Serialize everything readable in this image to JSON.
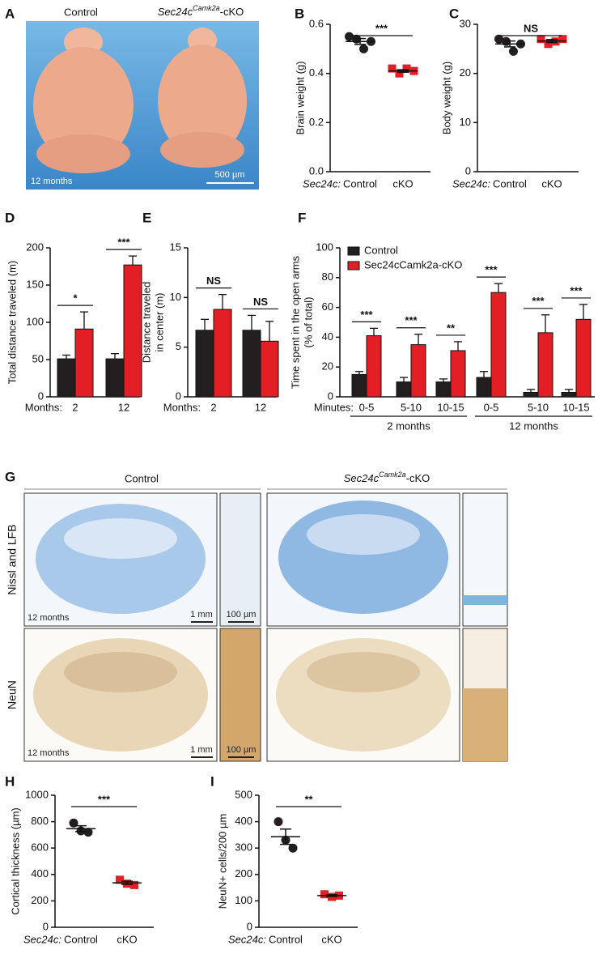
{
  "panel_a": {
    "letter": "A",
    "control": "Control",
    "cko": [
      "Sec24c",
      "Camk2a",
      "-cKO"
    ],
    "age": "12 months",
    "scale": "500 µm"
  },
  "panel_g": {
    "letter": "G",
    "control": "Control",
    "cko": [
      "Sec24c",
      "Camk2a",
      "-cKO"
    ],
    "rows": [
      "Nissl and LFB",
      "NeuN"
    ],
    "age": [
      "12 months",
      "12 months"
    ],
    "scale_large": [
      "1 mm",
      "1 mm"
    ],
    "scale_small": [
      "100 µm",
      "100 µm"
    ]
  },
  "chart_data": [
    {
      "panel": "B",
      "type": "dot",
      "ylabel": "Brain weight (g)",
      "x_prefix": "Sec24c:",
      "categories": [
        "Control",
        "cKO"
      ],
      "points": [
        [
          0.55,
          0.54,
          0.5,
          0.53
        ],
        [
          0.42,
          0.4,
          0.42,
          0.41
        ]
      ],
      "means": [
        0.53,
        0.41
      ],
      "sem": [
        0.012,
        0.005
      ],
      "colors": [
        "#231f20",
        "#e31e24"
      ],
      "markers": [
        "circle",
        "square"
      ],
      "ylim": [
        0,
        0.6
      ],
      "yticks": [
        {
          "value": 0,
          "label": "0.0"
        },
        0.2,
        0.4,
        0.6
      ],
      "significance": "***"
    },
    {
      "panel": "C",
      "type": "dot",
      "ylabel": "Body weight (g)",
      "x_prefix": "Sec24c:",
      "categories": [
        "Control",
        "cKO"
      ],
      "points": [
        [
          27,
          26.5,
          24.5,
          26
        ],
        [
          27,
          26,
          26.5,
          27
        ]
      ],
      "means": [
        26,
        26.6
      ],
      "sem": [
        0.6,
        0.3
      ],
      "colors": [
        "#231f20",
        "#e31e24"
      ],
      "markers": [
        "circle",
        "square"
      ],
      "ylim": [
        0,
        30
      ],
      "yticks": [
        0,
        10,
        20,
        30
      ],
      "significance": "NS"
    },
    {
      "panel": "D",
      "type": "bar",
      "ylabel": "Total distance traveled (m)",
      "xlabel": "Months:",
      "categories": [
        "2",
        "12"
      ],
      "series": [
        {
          "color": "#231f20",
          "values": [
            51,
            51
          ],
          "errors": [
            5,
            7
          ]
        },
        {
          "color": "#e31e24",
          "values": [
            91,
            177
          ],
          "errors": [
            23,
            12
          ]
        }
      ],
      "ylim": [
        0,
        200
      ],
      "yticks": [
        0,
        50,
        100,
        150,
        200
      ],
      "significance": [
        "*",
        "***"
      ]
    },
    {
      "panel": "E",
      "type": "bar",
      "ylabel": [
        "Distance traveled",
        "in center (m)"
      ],
      "xlabel": "Months:",
      "categories": [
        "2",
        "12"
      ],
      "series": [
        {
          "color": "#231f20",
          "values": [
            6.7,
            6.7
          ],
          "errors": [
            1.1,
            1.5
          ]
        },
        {
          "color": "#e31e24",
          "values": [
            8.8,
            5.6
          ],
          "errors": [
            1.5,
            2
          ]
        }
      ],
      "ylim": [
        0,
        15
      ],
      "yticks": [
        0,
        5,
        10,
        15
      ],
      "significance": [
        "NS",
        "NS"
      ]
    },
    {
      "panel": "F",
      "type": "bar",
      "ylabel": [
        "Time spent in the open arms",
        "(% of total)"
      ],
      "xlabel": "Minutes:",
      "categories": [
        "0-5",
        "5-10",
        "10-15",
        "0-5",
        "5-10",
        "10-15"
      ],
      "group_labels": [
        "2 months",
        "12 months"
      ],
      "series": [
        {
          "name": "Control",
          "color": "#231f20",
          "values": [
            15,
            10,
            10,
            13,
            3,
            3
          ],
          "errors": [
            2,
            3,
            2,
            4,
            2,
            2
          ]
        },
        {
          "name": "Sec24cCamk2a-cKO",
          "color": "#e31e24",
          "values": [
            41,
            35,
            31,
            70,
            43,
            52
          ],
          "errors": [
            5,
            7,
            6,
            6,
            12,
            10
          ]
        }
      ],
      "ylim": [
        0,
        100
      ],
      "yticks": [
        0,
        20,
        40,
        60,
        80,
        100
      ],
      "significance": [
        "***",
        "***",
        "**",
        "***",
        "***",
        "***"
      ],
      "legend": "upper-left"
    },
    {
      "panel": "H",
      "type": "dot",
      "ylabel": "Cortical thickness (µm)",
      "x_prefix": "Sec24c:",
      "categories": [
        "Control",
        "cKO"
      ],
      "points": [
        [
          790,
          730,
          720
        ],
        [
          360,
          330,
          320
        ]
      ],
      "means": [
        747,
        337
      ],
      "sem": [
        22,
        12
      ],
      "colors": [
        "#231f20",
        "#e31e24"
      ],
      "markers": [
        "circle",
        "square"
      ],
      "ylim": [
        0,
        1000
      ],
      "yticks": [
        0,
        200,
        400,
        600,
        800,
        1000
      ],
      "significance": "***"
    },
    {
      "panel": "I",
      "type": "dot",
      "ylabel": "NeuN+ cells/200 µm",
      "x_prefix": "Sec24c:",
      "categories": [
        "Control",
        "cKO"
      ],
      "points": [
        [
          400,
          330,
          300
        ],
        [
          125,
          115,
          120
        ]
      ],
      "means": [
        343,
        120
      ],
      "sem": [
        29,
        3
      ],
      "colors": [
        "#231f20",
        "#e31e24"
      ],
      "markers": [
        "circle",
        "square"
      ],
      "ylim": [
        0,
        500
      ],
      "yticks": [
        0,
        100,
        200,
        300,
        400,
        500
      ],
      "significance": "**"
    }
  ]
}
